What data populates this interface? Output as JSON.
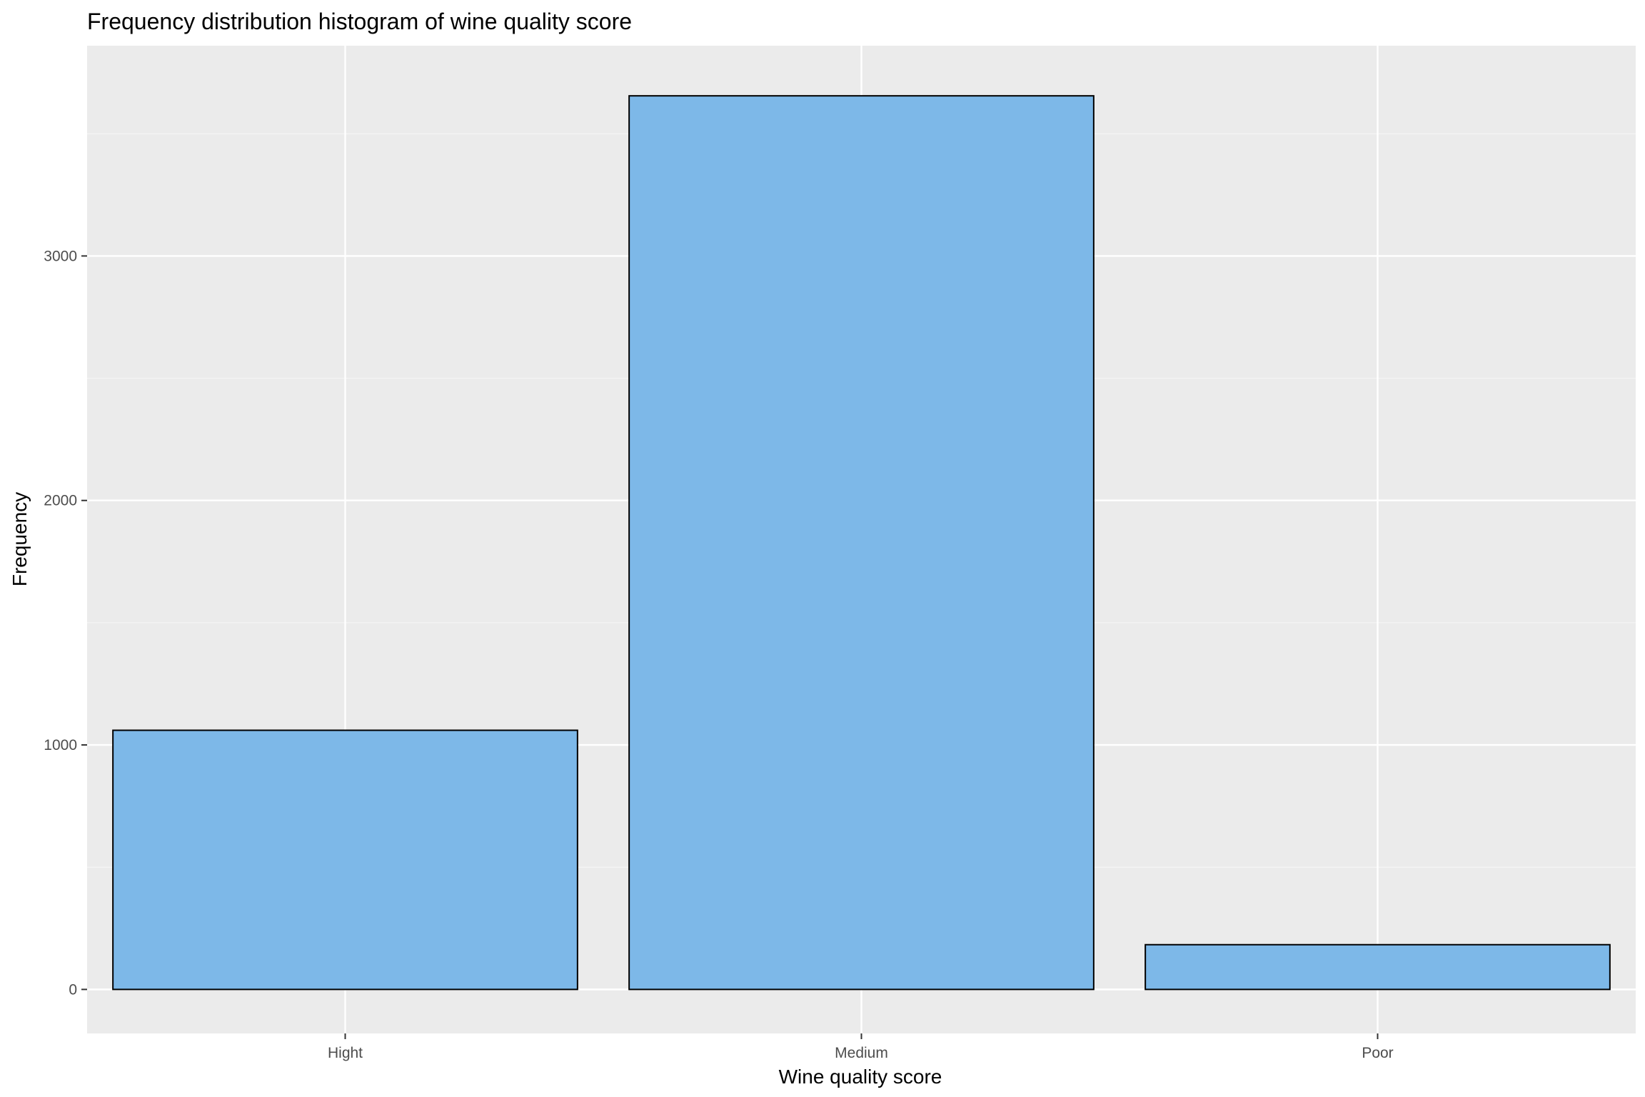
{
  "chart_data": {
    "type": "bar",
    "title": "Frequency distribution histogram of wine quality score",
    "xlabel": "Wine quality score",
    "ylabel": "Frequency",
    "categories": [
      "Hight",
      "Medium",
      "Poor"
    ],
    "values": [
      1060,
      3655,
      183
    ],
    "ylim": [
      -180,
      3860
    ],
    "yticks": [
      0,
      1000,
      2000,
      3000
    ],
    "yticks_minor": [
      500,
      1500,
      2500,
      3500
    ],
    "ytick_labels": [
      "0",
      "1000",
      "2000",
      "3000"
    ],
    "grid": true,
    "legend": "none",
    "colors": {
      "bar_fill": "#7db8e8",
      "bar_stroke": "#000000",
      "panel_background": "#ebebeb",
      "grid_major": "#ffffff",
      "grid_minor": "#f5f5f5",
      "tick_color": "#333333"
    }
  }
}
